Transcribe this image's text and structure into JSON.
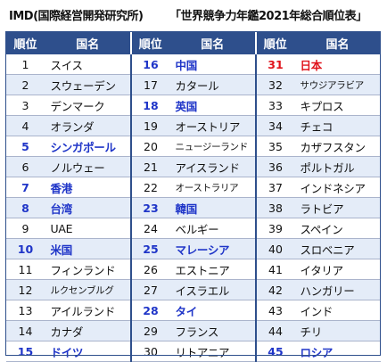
{
  "source": "IMD(国際経営開発研究所)",
  "title": "「世界競争力年鑑2021年総合順位表」",
  "headers": {
    "rank": "順位",
    "country": "国名"
  },
  "colors": {
    "header": "#2e4f8c",
    "highlight_blue": "#1f35c8",
    "highlight_red": "#e0141c",
    "alt_row": "#e4ecf8"
  },
  "rows": [
    [
      {
        "rank": "1",
        "country": "スイス"
      },
      {
        "rank": "16",
        "country": "中国",
        "hl": "blue"
      },
      {
        "rank": "31",
        "country": "日本",
        "hl": "red"
      }
    ],
    [
      {
        "rank": "2",
        "country": "スウェーデン"
      },
      {
        "rank": "17",
        "country": "カタール"
      },
      {
        "rank": "32",
        "country": "サウジアラビア",
        "small": true
      }
    ],
    [
      {
        "rank": "3",
        "country": "デンマーク"
      },
      {
        "rank": "18",
        "country": "英国",
        "hl": "blue"
      },
      {
        "rank": "33",
        "country": "キプロス"
      }
    ],
    [
      {
        "rank": "4",
        "country": "オランダ"
      },
      {
        "rank": "19",
        "country": "オーストリア"
      },
      {
        "rank": "34",
        "country": "チェコ"
      }
    ],
    [
      {
        "rank": "5",
        "country": "シンガポール",
        "hl": "blue"
      },
      {
        "rank": "20",
        "country": "ニュージーランド",
        "small": true
      },
      {
        "rank": "35",
        "country": "カザフスタン"
      }
    ],
    [
      {
        "rank": "6",
        "country": "ノルウェー"
      },
      {
        "rank": "21",
        "country": "アイスランド"
      },
      {
        "rank": "36",
        "country": "ポルトガル"
      }
    ],
    [
      {
        "rank": "7",
        "country": "香港",
        "hl": "blue"
      },
      {
        "rank": "22",
        "country": "オーストラリア",
        "small": true
      },
      {
        "rank": "37",
        "country": "インドネシア"
      }
    ],
    [
      {
        "rank": "8",
        "country": "台湾",
        "hl": "blue"
      },
      {
        "rank": "23",
        "country": "韓国",
        "hl": "blue"
      },
      {
        "rank": "38",
        "country": "ラトビア"
      }
    ],
    [
      {
        "rank": "9",
        "country": "UAE"
      },
      {
        "rank": "24",
        "country": "ベルギー"
      },
      {
        "rank": "39",
        "country": "スペイン"
      }
    ],
    [
      {
        "rank": "10",
        "country": "米国",
        "hl": "blue"
      },
      {
        "rank": "25",
        "country": "マレーシア",
        "hl": "blue"
      },
      {
        "rank": "40",
        "country": "スロベニア"
      }
    ],
    [
      {
        "rank": "11",
        "country": "フィンランド"
      },
      {
        "rank": "26",
        "country": "エストニア"
      },
      {
        "rank": "41",
        "country": "イタリア"
      }
    ],
    [
      {
        "rank": "12",
        "country": "ルクセンブルグ",
        "small": true
      },
      {
        "rank": "27",
        "country": "イスラエル"
      },
      {
        "rank": "42",
        "country": "ハンガリー"
      }
    ],
    [
      {
        "rank": "13",
        "country": "アイルランド"
      },
      {
        "rank": "28",
        "country": "タイ",
        "hl": "blue"
      },
      {
        "rank": "43",
        "country": "インド"
      }
    ],
    [
      {
        "rank": "14",
        "country": "カナダ"
      },
      {
        "rank": "29",
        "country": "フランス"
      },
      {
        "rank": "44",
        "country": "チリ"
      }
    ],
    [
      {
        "rank": "15",
        "country": "ドイツ",
        "hl": "blue"
      },
      {
        "rank": "30",
        "country": "リトアニア"
      },
      {
        "rank": "45",
        "country": "ロシア",
        "hl": "blue"
      }
    ]
  ]
}
